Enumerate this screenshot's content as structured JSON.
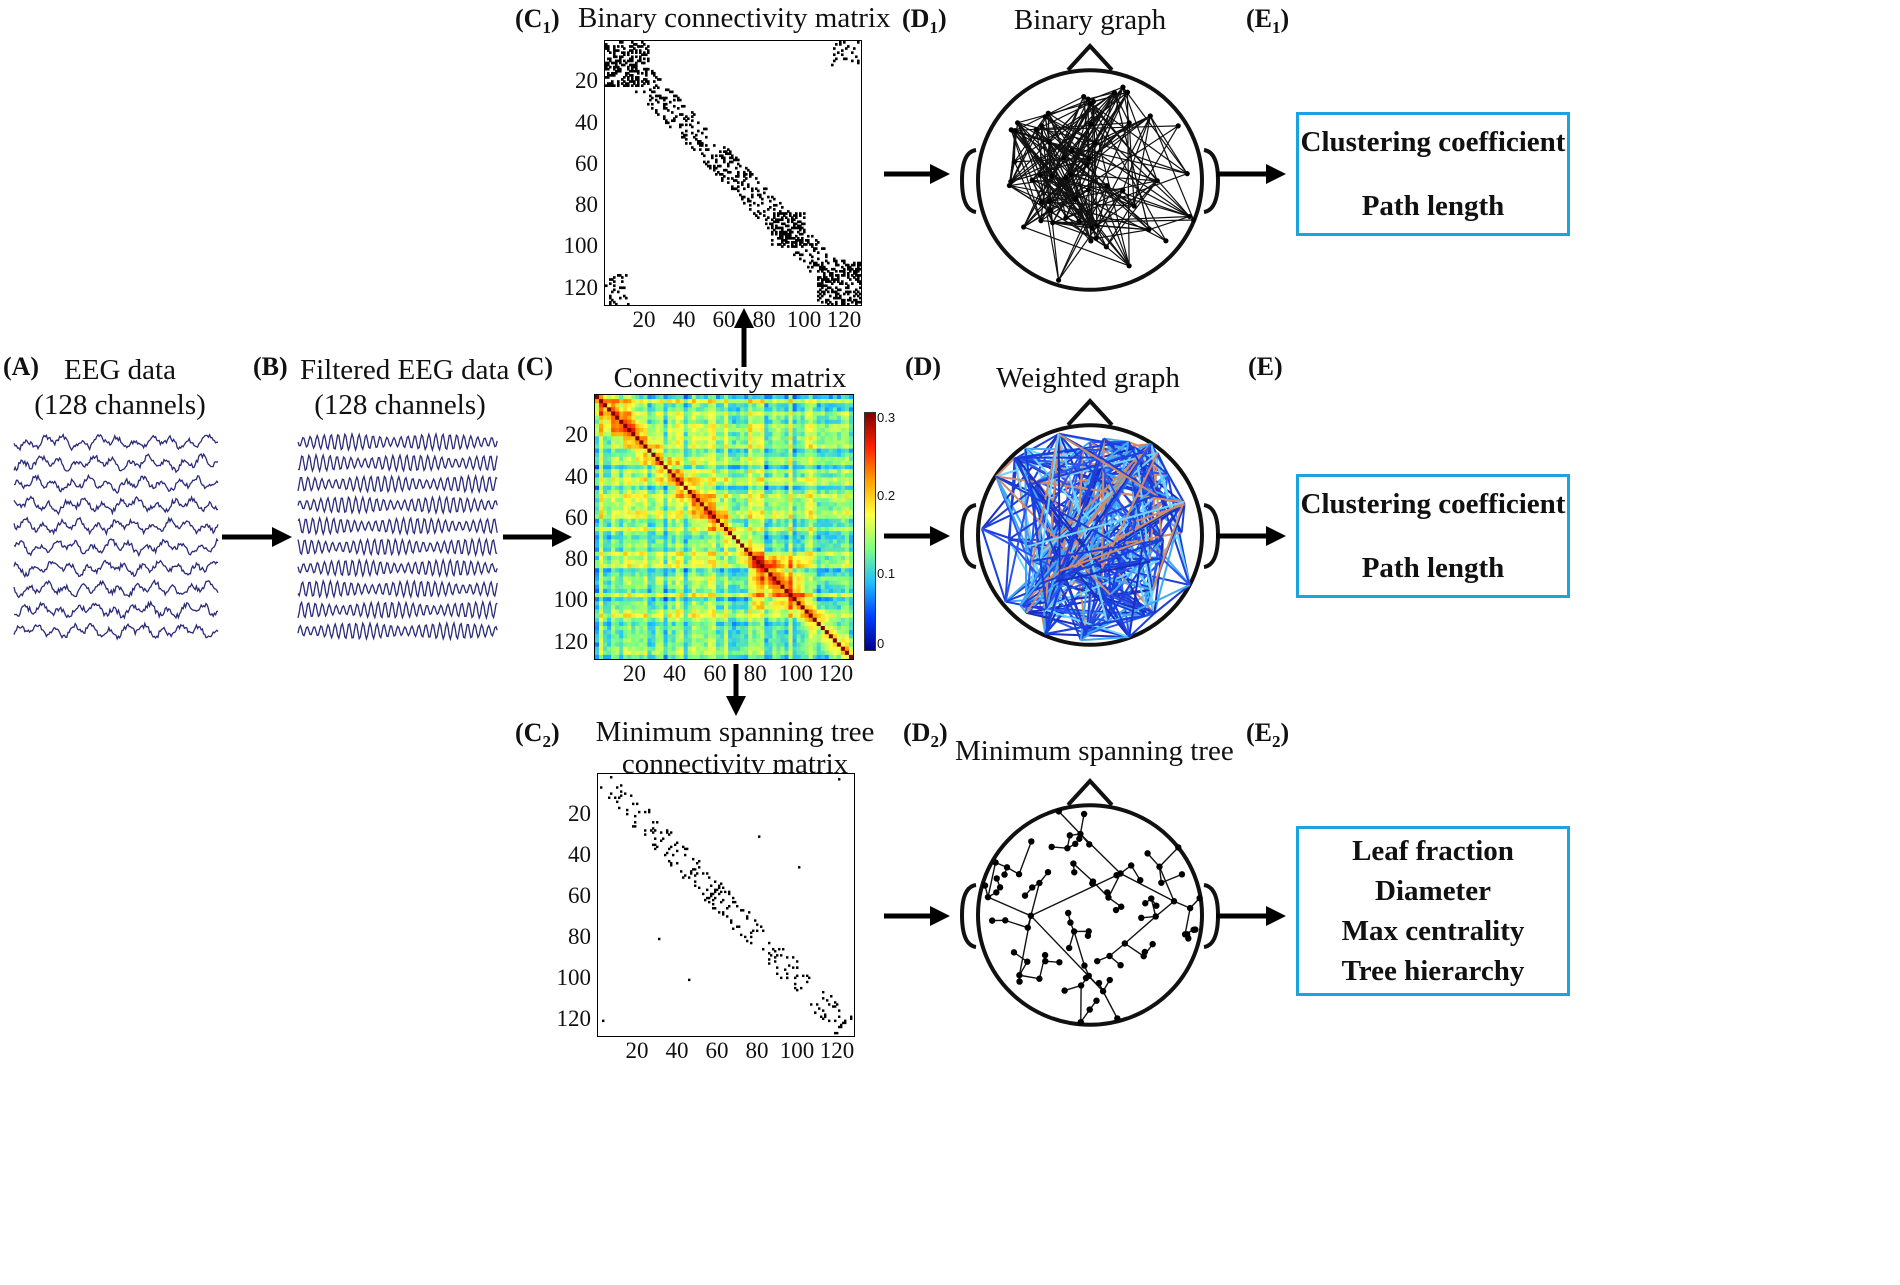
{
  "panels": {
    "A": {
      "letter": "(A)",
      "title_line1": "EEG data",
      "title_line2": "(128 channels)"
    },
    "B": {
      "letter": "(B)",
      "title_line1": "Filtered EEG data",
      "title_line2": "(128 channels)"
    },
    "C": {
      "letter": "(C)",
      "title": "Connectivity matrix"
    },
    "C1": {
      "letter_main": "(C",
      "letter_sub": "1",
      "letter_close": ")",
      "title": "Binary connectivity matrix"
    },
    "C2": {
      "letter_main": "(C",
      "letter_sub": "2",
      "letter_close": ")",
      "title_line1": "Minimum spanning tree",
      "title_line2": "connectivity matrix"
    },
    "D": {
      "letter": "(D)",
      "title": "Weighted graph"
    },
    "D1": {
      "letter_main": "(D",
      "letter_sub": "1",
      "letter_close": ")",
      "title": "Binary graph"
    },
    "D2": {
      "letter_main": "(D",
      "letter_sub": "2",
      "letter_close": ")",
      "title": "Minimum spanning tree"
    },
    "E": {
      "letter": "(E)"
    },
    "E1": {
      "letter_main": "(E",
      "letter_sub": "1",
      "letter_close": ")"
    }
  },
  "measures": {
    "binary": [
      "Clustering coefficient",
      "Path length"
    ],
    "weighted": [
      "Clustering coefficient",
      "Path length"
    ],
    "mst": [
      "Leaf fraction",
      "Diameter",
      "Max centrality",
      "Tree hierarchy"
    ]
  },
  "matrix_axes": {
    "ticks": [
      "20",
      "40",
      "60",
      "80",
      "100",
      "120"
    ],
    "colorbar_ticks": [
      "0.3",
      "0.2",
      "0.1",
      "0"
    ]
  },
  "colors": {
    "eeg_trace": "#2b2b7a",
    "measure_border": "#1ca3df",
    "arrow": "#000000"
  }
}
